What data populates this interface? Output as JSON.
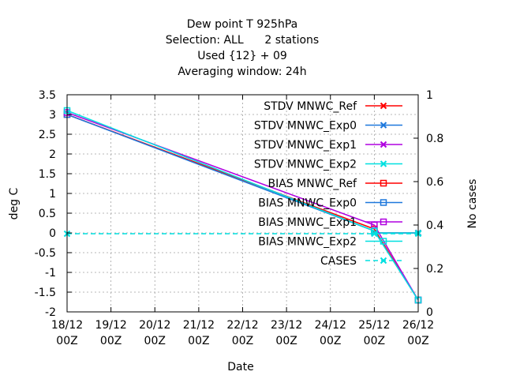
{
  "chart_data": {
    "type": "line",
    "title_lines": [
      "Dew point T 925hPa",
      "Selection: ALL      2 stations",
      "Used {12} + 09",
      "Averaging window: 24h"
    ],
    "xlabel": "Date",
    "ylabel": "deg C",
    "y2label": "No cases",
    "x_categories": [
      "18/12\n00Z",
      "19/12\n00Z",
      "20/12\n00Z",
      "21/12\n00Z",
      "22/12\n00Z",
      "23/12\n00Z",
      "24/12\n00Z",
      "25/12\n00Z",
      "26/12\n00Z"
    ],
    "x_index_range": [
      0,
      8
    ],
    "ylim": [
      -2,
      3.5
    ],
    "y_ticks": [
      -2,
      -1.5,
      -1,
      -0.5,
      0,
      0.5,
      1,
      1.5,
      2,
      2.5,
      3,
      3.5
    ],
    "y2lim": [
      0,
      1
    ],
    "y2_ticks": [
      0,
      0.2,
      0.4,
      0.6,
      0.8,
      1
    ],
    "grid": true,
    "legend_position": "top-right",
    "series": [
      {
        "name": "STDV MNWC_Ref",
        "color": "#ff0000",
        "marker": "x",
        "axis": "y",
        "x": [
          7,
          8
        ],
        "y": [
          0,
          0
        ]
      },
      {
        "name": "STDV MNWC_Exp0",
        "color": "#1e78dc",
        "marker": "x",
        "axis": "y",
        "x": [
          7,
          8
        ],
        "y": [
          0,
          0
        ]
      },
      {
        "name": "STDV MNWC_Exp1",
        "color": "#b000e0",
        "marker": "x",
        "axis": "y",
        "x": [
          7,
          8
        ],
        "y": [
          0,
          0
        ]
      },
      {
        "name": "STDV MNWC_Exp2",
        "color": "#00e0e0",
        "marker": "x",
        "axis": "y",
        "x": [
          7,
          8
        ],
        "y": [
          0,
          0
        ]
      },
      {
        "name": "BIAS MNWC_Ref",
        "color": "#ff0000",
        "marker": "square",
        "axis": "y",
        "x": [
          0,
          7,
          8
        ],
        "y": [
          3.0,
          0.1,
          -1.7
        ]
      },
      {
        "name": "BIAS MNWC_Exp0",
        "color": "#1e78dc",
        "marker": "square",
        "axis": "y",
        "x": [
          0,
          7,
          8
        ],
        "y": [
          3.0,
          0.05,
          -1.7
        ]
      },
      {
        "name": "BIAS MNWC_Exp1",
        "color": "#b000e0",
        "marker": "square",
        "axis": "y",
        "x": [
          0,
          7,
          8
        ],
        "y": [
          3.05,
          0.2,
          -1.7
        ]
      },
      {
        "name": "BIAS MNWC_Exp2",
        "color": "#00e0e0",
        "marker": "square",
        "axis": "y",
        "x": [
          0,
          7,
          8
        ],
        "y": [
          3.1,
          0.05,
          -1.7
        ]
      },
      {
        "name": "CASES",
        "color": "#00e0e0",
        "marker": "x",
        "axis": "y2",
        "dashed": true,
        "x": [
          0,
          7,
          8
        ],
        "y": [
          0.36,
          0.36,
          0.36
        ]
      }
    ]
  }
}
